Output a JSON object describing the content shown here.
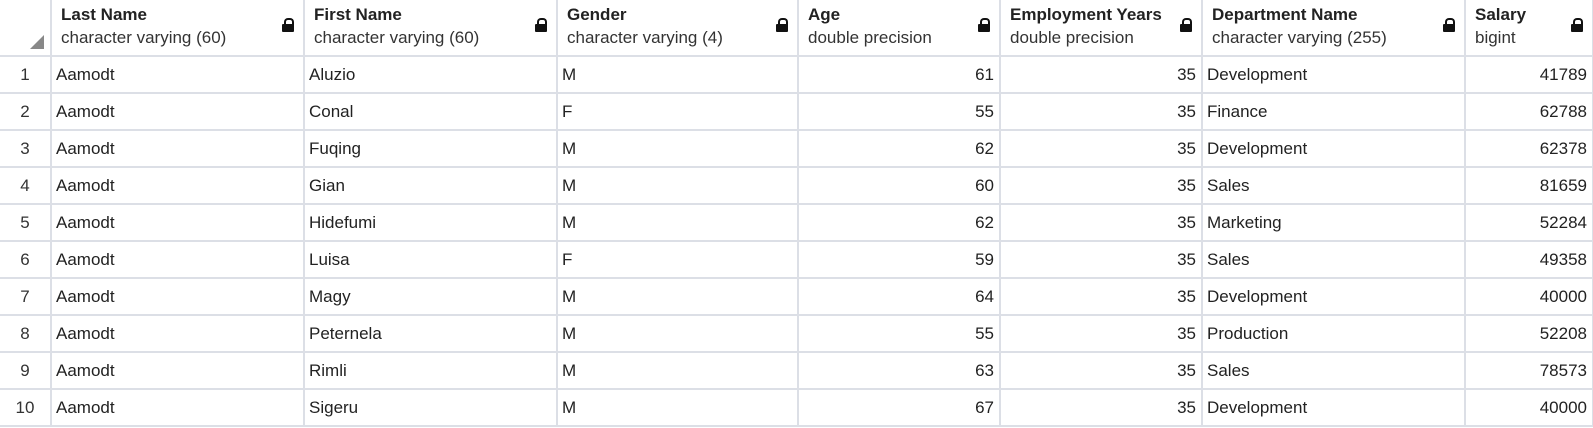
{
  "columns": [
    {
      "name": "Last Name",
      "type": "character varying (60)"
    },
    {
      "name": "First Name",
      "type": "character varying (60)"
    },
    {
      "name": "Gender",
      "type": "character varying (4)"
    },
    {
      "name": "Age",
      "type": "double precision"
    },
    {
      "name": "Employment Years",
      "type": "double precision"
    },
    {
      "name": "Department Name",
      "type": "character varying (255)"
    },
    {
      "name": "Salary",
      "type": "bigint"
    }
  ],
  "rows": [
    {
      "idx": "1",
      "last": "Aamodt",
      "first": "Aluzio",
      "gender": "M",
      "age": "61",
      "years": "35",
      "dept": "Development",
      "salary": "41789"
    },
    {
      "idx": "2",
      "last": "Aamodt",
      "first": "Conal",
      "gender": "F",
      "age": "55",
      "years": "35",
      "dept": "Finance",
      "salary": "62788"
    },
    {
      "idx": "3",
      "last": "Aamodt",
      "first": "Fuqing",
      "gender": "M",
      "age": "62",
      "years": "35",
      "dept": "Development",
      "salary": "62378"
    },
    {
      "idx": "4",
      "last": "Aamodt",
      "first": "Gian",
      "gender": "M",
      "age": "60",
      "years": "35",
      "dept": "Sales",
      "salary": "81659"
    },
    {
      "idx": "5",
      "last": "Aamodt",
      "first": "Hidefumi",
      "gender": "M",
      "age": "62",
      "years": "35",
      "dept": "Marketing",
      "salary": "52284"
    },
    {
      "idx": "6",
      "last": "Aamodt",
      "first": "Luisa",
      "gender": "F",
      "age": "59",
      "years": "35",
      "dept": "Sales",
      "salary": "49358"
    },
    {
      "idx": "7",
      "last": "Aamodt",
      "first": "Magy",
      "gender": "M",
      "age": "64",
      "years": "35",
      "dept": "Development",
      "salary": "40000"
    },
    {
      "idx": "8",
      "last": "Aamodt",
      "first": "Peternela",
      "gender": "M",
      "age": "55",
      "years": "35",
      "dept": "Production",
      "salary": "52208"
    },
    {
      "idx": "9",
      "last": "Aamodt",
      "first": "Rimli",
      "gender": "M",
      "age": "63",
      "years": "35",
      "dept": "Sales",
      "salary": "78573"
    },
    {
      "idx": "10",
      "last": "Aamodt",
      "first": "Sigeru",
      "gender": "M",
      "age": "67",
      "years": "35",
      "dept": "Development",
      "salary": "40000"
    }
  ],
  "icons": {
    "column_lock": "lock-icon",
    "select_all": "select-all-corner-icon"
  },
  "colors": {
    "grid_line": "#dcdfe6",
    "lock": "#111111"
  }
}
